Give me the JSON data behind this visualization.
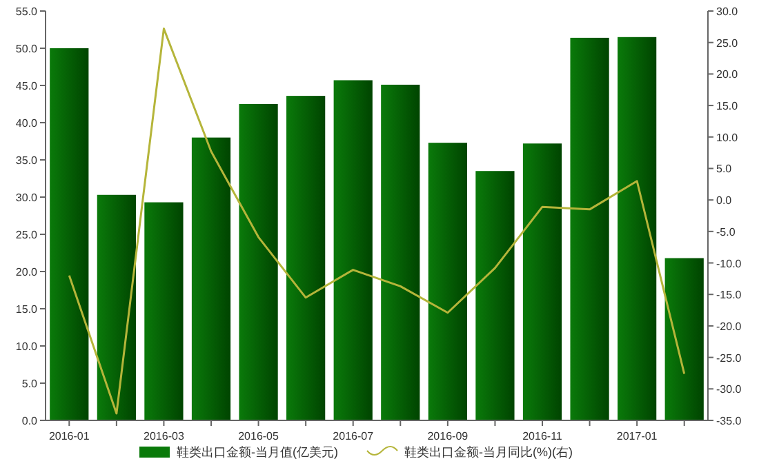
{
  "chart_data": {
    "type": "bar",
    "categories": [
      "2016-01",
      null,
      "2016-03",
      null,
      "2016-05",
      null,
      "2016-07",
      null,
      "2016-09",
      null,
      "2016-11",
      null,
      "2017-01",
      null
    ],
    "series": [
      {
        "name": "鞋类出口金额-当月值(亿美元)",
        "color": "#0a7a0a",
        "values": [
          50.0,
          30.3,
          29.3,
          38.0,
          42.5,
          43.6,
          45.7,
          45.1,
          37.3,
          33.5,
          37.2,
          51.4,
          51.5,
          21.8
        ]
      },
      {
        "name": "鞋类出口金额-当月同比(%)(右)",
        "type": "line",
        "axis": "y2",
        "color": "#b5b53a",
        "values": [
          -12.0,
          -33.9,
          27.2,
          7.7,
          -5.9,
          -15.5,
          -11.1,
          -13.7,
          -17.9,
          -10.8,
          -1.1,
          -1.5,
          3.0,
          -27.6
        ]
      }
    ],
    "ylim": [
      0,
      55
    ],
    "yticks": [
      {
        "value": 0,
        "label": "0.0"
      },
      {
        "value": 5,
        "label": "5.0"
      },
      {
        "value": 10,
        "label": "10.0"
      },
      {
        "value": 15,
        "label": "15.0"
      },
      {
        "value": 20,
        "label": "20.0"
      },
      {
        "value": 25,
        "label": "25.0"
      },
      {
        "value": 30,
        "label": "30.0"
      },
      {
        "value": 35,
        "label": "35.0"
      },
      {
        "value": 40,
        "label": "40.0"
      },
      {
        "value": 45,
        "label": "45.0"
      },
      {
        "value": 50,
        "label": "50.0"
      },
      {
        "value": 55,
        "label": "55.0"
      }
    ],
    "y2lim": [
      -35,
      30
    ],
    "y2ticks": [
      {
        "value": -35,
        "label": "-35.0"
      },
      {
        "value": -30,
        "label": "-30.0"
      },
      {
        "value": -25,
        "label": "-25.0"
      },
      {
        "value": -20,
        "label": "-20.0"
      },
      {
        "value": -15,
        "label": "-15.0"
      },
      {
        "value": -10,
        "label": "-10.0"
      },
      {
        "value": -5,
        "label": "-5.0"
      },
      {
        "value": 0,
        "label": "0.0"
      },
      {
        "value": 5,
        "label": "5.0"
      },
      {
        "value": 10,
        "label": "10.0"
      },
      {
        "value": 15,
        "label": "15.0"
      },
      {
        "value": 20,
        "label": "20.0"
      },
      {
        "value": 25,
        "label": "25.0"
      },
      {
        "value": 30,
        "label": "30.0"
      }
    ],
    "grid": false,
    "legend": "bottom"
  }
}
